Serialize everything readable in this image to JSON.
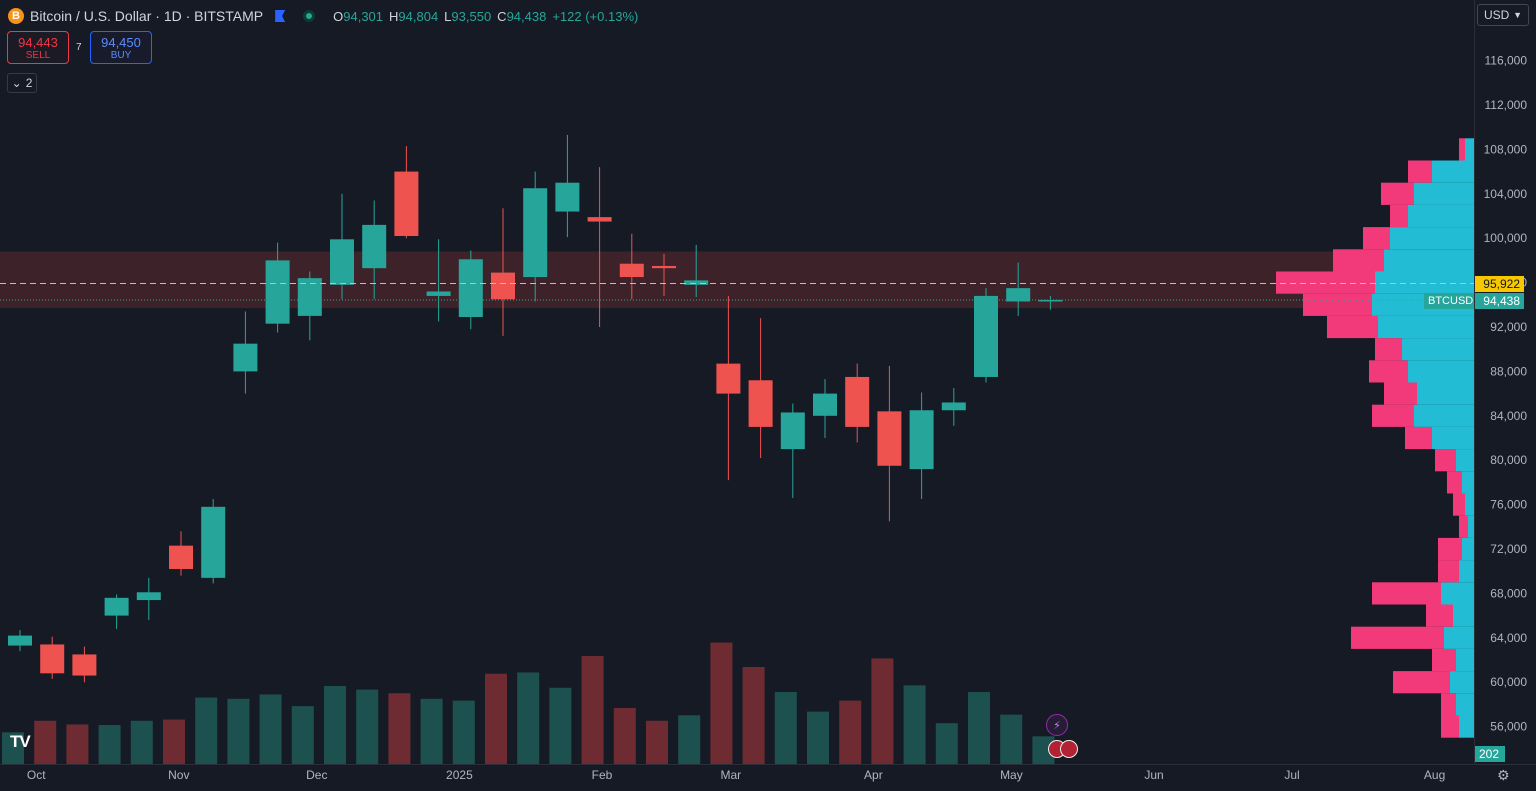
{
  "header": {
    "coin_icon": "B",
    "title": "Bitcoin / U.S. Dollar · 1D · BITSTAMP",
    "ohlc": {
      "o_label": "O",
      "o_value": "94,301",
      "h_label": "H",
      "h_value": "94,804",
      "l_label": "L",
      "l_value": "93,550",
      "c_label": "C",
      "c_value": "94,438",
      "change": "+122 (+0.13%)"
    }
  },
  "trading": {
    "sell_price": "94,443",
    "sell_label": "SELL",
    "spread": "7",
    "buy_price": "94,450",
    "buy_label": "BUY"
  },
  "indicators_toggle": {
    "icon": "chevron-down-icon",
    "count": "2"
  },
  "currency_select": {
    "value": "USD"
  },
  "price_labels": {
    "horizontal_line": "95,922",
    "symbol": "BTCUSD",
    "last_price": "94,438",
    "volume": "202"
  },
  "colors": {
    "background": "#161a25",
    "up": "#26a69a",
    "down": "#ef5350",
    "volume_up": "#1e5c58",
    "volume_down": "#7e3035",
    "zone": "#3d2329",
    "profile_pink": "#f23a7a",
    "profile_cyan": "#22bcd4",
    "hline": "#f7c800"
  },
  "chart_data": {
    "type": "candlestick",
    "symbol": "BTCUSD",
    "interval": "1D",
    "exchange": "BITSTAMP",
    "y_axis": {
      "ticks": [
        56000,
        60000,
        64000,
        68000,
        72000,
        76000,
        80000,
        84000,
        88000,
        92000,
        96000,
        100000,
        104000,
        108000,
        112000,
        116000
      ],
      "tick_labels": [
        "56,000",
        "60,000",
        "64,000",
        "68,000",
        "72,000",
        "76,000",
        "80,000",
        "84,000",
        "88,000",
        "92,000",
        "96,000",
        "100,000",
        "104,000",
        "108,000",
        "112,000",
        "116,000"
      ]
    },
    "x_axis": {
      "tick_labels": [
        "Oct",
        "Nov",
        "Dec",
        "2025",
        "Feb",
        "Mar",
        "Apr",
        "May",
        "Jun",
        "Jul",
        "Aug"
      ]
    },
    "horizontal_line": 95922,
    "zone": {
      "low": 93700,
      "high": 98800
    },
    "last_price": 94438,
    "candles": [
      {
        "date": "2024-09-24",
        "o": 63300,
        "h": 64700,
        "l": 62800,
        "c": 64200
      },
      {
        "date": "2024-10-01",
        "o": 63400,
        "h": 64100,
        "l": 60300,
        "c": 60800
      },
      {
        "date": "2024-10-08",
        "o": 62500,
        "h": 63200,
        "l": 60000,
        "c": 60600
      },
      {
        "date": "2024-10-15",
        "o": 66000,
        "h": 67900,
        "l": 64800,
        "c": 67600
      },
      {
        "date": "2024-10-22",
        "o": 67400,
        "h": 69400,
        "l": 65600,
        "c": 68100
      },
      {
        "date": "2024-10-29",
        "o": 72300,
        "h": 73600,
        "l": 69600,
        "c": 70200
      },
      {
        "date": "2024-11-05",
        "o": 69400,
        "h": 76500,
        "l": 68900,
        "c": 75800
      },
      {
        "date": "2024-11-12",
        "o": 88000,
        "h": 93400,
        "l": 86000,
        "c": 90500
      },
      {
        "date": "2024-11-19",
        "o": 92300,
        "h": 99600,
        "l": 91500,
        "c": 98000
      },
      {
        "date": "2024-11-26",
        "o": 93000,
        "h": 97000,
        "l": 90800,
        "c": 96400
      },
      {
        "date": "2024-12-03",
        "o": 95800,
        "h": 104000,
        "l": 94500,
        "c": 99900
      },
      {
        "date": "2024-12-10",
        "o": 97300,
        "h": 103400,
        "l": 94500,
        "c": 101200
      },
      {
        "date": "2024-12-17",
        "o": 106000,
        "h": 108300,
        "l": 100000,
        "c": 100200
      },
      {
        "date": "2024-12-24",
        "o": 94800,
        "h": 99900,
        "l": 92500,
        "c": 95200
      },
      {
        "date": "2024-12-31",
        "o": 92900,
        "h": 98900,
        "l": 91800,
        "c": 98100
      },
      {
        "date": "2025-01-07",
        "o": 96900,
        "h": 102700,
        "l": 91200,
        "c": 94500
      },
      {
        "date": "2025-01-14",
        "o": 96500,
        "h": 106000,
        "l": 94300,
        "c": 104500
      },
      {
        "date": "2025-01-21",
        "o": 102400,
        "h": 109300,
        "l": 100100,
        "c": 105000
      },
      {
        "date": "2025-01-28",
        "o": 101900,
        "h": 106400,
        "l": 92000,
        "c": 101500
      },
      {
        "date": "2025-02-04",
        "o": 97700,
        "h": 100400,
        "l": 94500,
        "c": 96500
      },
      {
        "date": "2025-02-11",
        "o": 97500,
        "h": 98600,
        "l": 94800,
        "c": 97300
      },
      {
        "date": "2025-02-18",
        "o": 95800,
        "h": 99400,
        "l": 94700,
        "c": 96200
      },
      {
        "date": "2025-02-25",
        "o": 88700,
        "h": 94800,
        "l": 78200,
        "c": 86000
      },
      {
        "date": "2025-03-04",
        "o": 87200,
        "h": 92800,
        "l": 80200,
        "c": 83000
      },
      {
        "date": "2025-03-11",
        "o": 81000,
        "h": 85100,
        "l": 76600,
        "c": 84300
      },
      {
        "date": "2025-03-18",
        "o": 84000,
        "h": 87300,
        "l": 82000,
        "c": 86000
      },
      {
        "date": "2025-03-25",
        "o": 87500,
        "h": 88700,
        "l": 81600,
        "c": 83000
      },
      {
        "date": "2025-04-01",
        "o": 84400,
        "h": 88500,
        "l": 74500,
        "c": 79500
      },
      {
        "date": "2025-04-08",
        "o": 79200,
        "h": 86100,
        "l": 76500,
        "c": 84500
      },
      {
        "date": "2025-04-15",
        "o": 84500,
        "h": 86500,
        "l": 83100,
        "c": 85200
      },
      {
        "date": "2025-04-22",
        "o": 87500,
        "h": 95500,
        "l": 87000,
        "c": 94800
      },
      {
        "date": "2025-04-29",
        "o": 94300,
        "h": 97800,
        "l": 93000,
        "c": 95500
      },
      {
        "date": "2025-05-06",
        "o": 94301,
        "h": 94804,
        "l": 93550,
        "c": 94438
      }
    ],
    "volume_profile": {
      "price_levels": [
        56000,
        58000,
        60000,
        62000,
        64000,
        66000,
        68000,
        70000,
        72000,
        74000,
        76000,
        78000,
        80000,
        82000,
        84000,
        86000,
        88000,
        90000,
        92000,
        94000,
        96000,
        98000,
        100000,
        102000,
        104000,
        106000,
        108000
      ],
      "up_volume": [
        0.05,
        0.06,
        0.08,
        0.06,
        0.1,
        0.07,
        0.11,
        0.05,
        0.04,
        0.02,
        0.03,
        0.04,
        0.06,
        0.14,
        0.2,
        0.19,
        0.22,
        0.24,
        0.32,
        0.34,
        0.33,
        0.3,
        0.28,
        0.22,
        0.2,
        0.14,
        0.03
      ],
      "down_volume": [
        0.06,
        0.05,
        0.19,
        0.08,
        0.31,
        0.09,
        0.23,
        0.07,
        0.08,
        0.03,
        0.04,
        0.05,
        0.07,
        0.09,
        0.14,
        0.11,
        0.13,
        0.09,
        0.17,
        0.23,
        0.33,
        0.17,
        0.09,
        0.06,
        0.11,
        0.08,
        0.02
      ]
    }
  }
}
